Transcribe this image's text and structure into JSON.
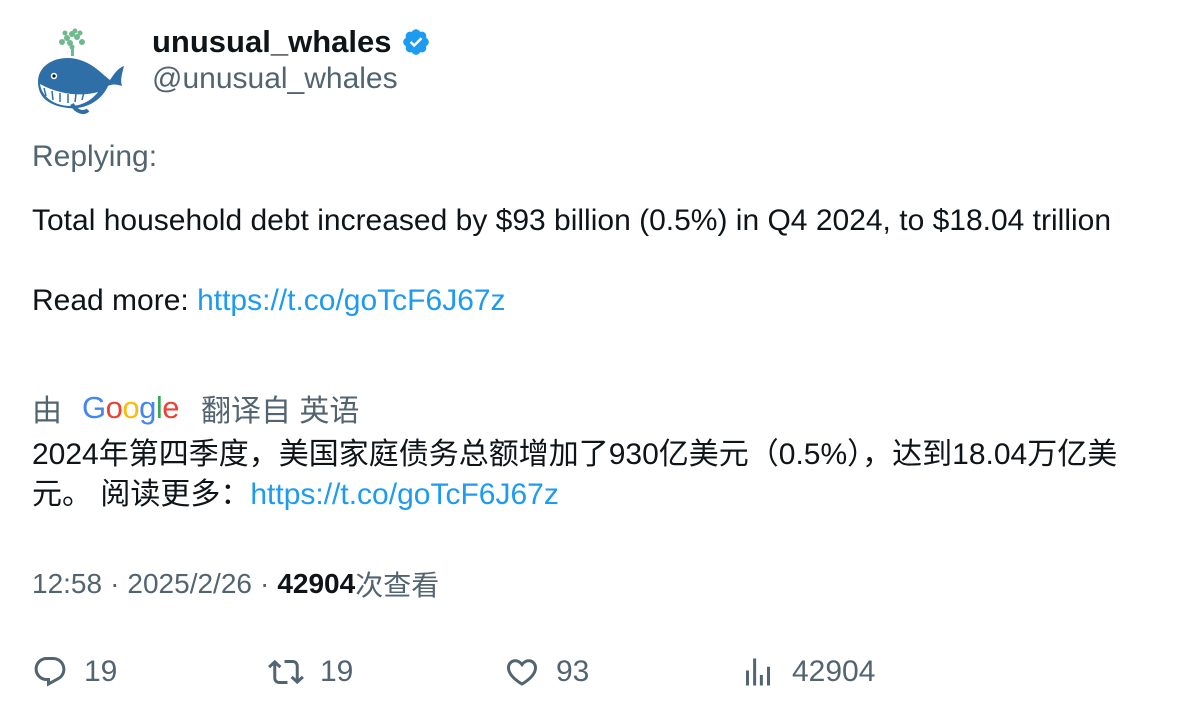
{
  "author": {
    "display_name": "unusual_whales",
    "handle": "@unusual_whales",
    "avatar_icon": "whale-avatar-icon",
    "verified_icon": "verified-badge-icon",
    "verified_color": "#1d9bf0"
  },
  "replying_label": "Replying:",
  "tweet": {
    "text_line": "Total household debt increased by $93 billion (0.5%) in Q4 2024, to $18.04 trillion",
    "read_more_label": "Read more: ",
    "link": "https://t.co/goTcF6J67z"
  },
  "translation": {
    "by_label": "由",
    "provider": "Google",
    "from_label": "翻译自 英语",
    "text": "2024年第四季度，美国家庭债务总额增加了930亿美元（0.5%），达到18.04万亿美元。 阅读更多：",
    "link": "https://t.co/goTcF6J67z"
  },
  "meta": {
    "time": "12:58",
    "separator": "·",
    "date": "2025/2/26",
    "views_count": "42904",
    "views_label": "次查看"
  },
  "actions": {
    "replies": "19",
    "retweets": "19",
    "likes": "93",
    "views": "42904"
  },
  "colors": {
    "link": "#1d9bf0",
    "secondary_text": "#536471",
    "primary_text": "#0f1419"
  }
}
